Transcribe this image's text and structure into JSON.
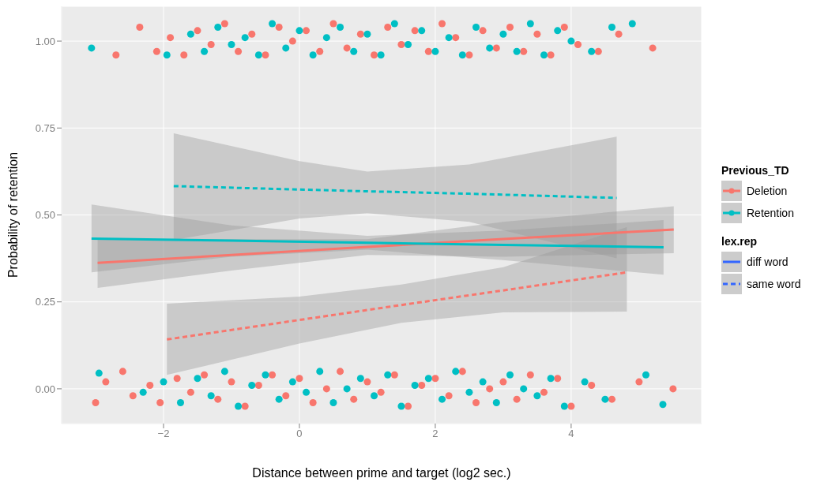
{
  "chart_data": {
    "type": "scatter",
    "xlabel": "Distance between prime and target (log2 sec.)",
    "ylabel": "Probability of retention",
    "xlim": [
      -3.5,
      5.92
    ],
    "xticks": [
      {
        "value": -2,
        "label": "−2"
      },
      0,
      2,
      4
    ],
    "ylim": [
      -0.1,
      1.1
    ],
    "yticks": [
      {
        "value": 0,
        "label": "0.00"
      },
      {
        "value": 0.25,
        "label": "0.25"
      },
      {
        "value": 0.5,
        "label": "0.50"
      },
      {
        "value": 0.75,
        "label": "0.75"
      },
      {
        "value": 1,
        "label": "1.00"
      }
    ],
    "grid": true,
    "legend": "right",
    "legend_title": "Previous_TD",
    "annotations": [
      "lex.rep",
      "diff word",
      "same word"
    ],
    "series": [
      {
        "marker": "circle",
        "name": "Deletion",
        "color": "#f8766d",
        "x": [
          -3.0,
          -2.85,
          -2.6,
          -2.45,
          -2.2,
          -2.05,
          -1.8,
          -1.6,
          -1.4,
          -1.2,
          -1.0,
          -0.8,
          -0.6,
          -0.4,
          -0.2,
          0.0,
          0.2,
          0.4,
          0.6,
          0.8,
          1.0,
          1.2,
          1.4,
          1.6,
          1.8,
          2.0,
          2.2,
          2.4,
          2.6,
          2.8,
          3.0,
          3.2,
          3.4,
          3.6,
          3.8,
          4.0,
          4.3,
          4.6,
          5.0,
          5.5,
          -2.7,
          -2.35,
          -2.1,
          -1.9,
          -1.7,
          -1.5,
          -1.3,
          -1.1,
          -0.9,
          -0.7,
          -0.5,
          -0.3,
          -0.1,
          0.1,
          0.3,
          0.5,
          0.7,
          0.9,
          1.1,
          1.3,
          1.5,
          1.7,
          1.9,
          2.1,
          2.3,
          2.5,
          2.7,
          2.9,
          3.1,
          3.3,
          3.5,
          3.7,
          3.9,
          4.1,
          4.4,
          4.7,
          5.2
        ],
        "values": [
          -0.04,
          0.02,
          0.05,
          -0.02,
          0.01,
          -0.04,
          0.03,
          -0.01,
          0.04,
          -0.03,
          0.02,
          -0.05,
          0.01,
          0.04,
          -0.02,
          0.03,
          -0.04,
          0.0,
          0.05,
          -0.03,
          0.02,
          -0.01,
          0.04,
          -0.05,
          0.01,
          0.03,
          -0.02,
          0.05,
          -0.04,
          0.0,
          0.02,
          -0.03,
          0.04,
          -0.01,
          0.03,
          -0.05,
          0.01,
          -0.03,
          0.02,
          0.0,
          0.96,
          1.04,
          0.97,
          1.01,
          0.96,
          1.03,
          0.99,
          1.05,
          0.97,
          1.02,
          0.96,
          1.04,
          1.0,
          1.03,
          0.97,
          1.05,
          0.98,
          1.02,
          0.96,
          1.04,
          0.99,
          1.03,
          0.97,
          1.05,
          1.01,
          0.96,
          1.03,
          0.98,
          1.04,
          0.97,
          1.02,
          0.96,
          1.04,
          0.99,
          0.97,
          1.02,
          0.98
        ]
      },
      {
        "marker": "circle",
        "name": "Retention",
        "color": "#00bfc4",
        "x": [
          -2.95,
          -2.3,
          -2.0,
          -1.75,
          -1.5,
          -1.3,
          -1.1,
          -0.9,
          -0.7,
          -0.5,
          -0.3,
          -0.1,
          0.1,
          0.3,
          0.5,
          0.7,
          0.9,
          1.1,
          1.3,
          1.5,
          1.7,
          1.9,
          2.1,
          2.3,
          2.5,
          2.7,
          2.9,
          3.1,
          3.3,
          3.5,
          3.7,
          3.9,
          4.2,
          4.5,
          5.1,
          5.35,
          -3.06,
          -1.95,
          -1.6,
          -1.4,
          -1.2,
          -1.0,
          -0.8,
          -0.6,
          -0.4,
          -0.2,
          0.0,
          0.2,
          0.4,
          0.6,
          0.8,
          1.0,
          1.2,
          1.4,
          1.6,
          1.8,
          2.0,
          2.2,
          2.4,
          2.6,
          2.8,
          3.0,
          3.2,
          3.4,
          3.6,
          3.8,
          4.0,
          4.3,
          4.6,
          4.9
        ],
        "values": [
          0.045,
          -0.01,
          0.02,
          -0.04,
          0.03,
          -0.02,
          0.05,
          -0.05,
          0.01,
          0.04,
          -0.03,
          0.02,
          -0.01,
          0.05,
          -0.04,
          0.0,
          0.03,
          -0.02,
          0.04,
          -0.05,
          0.01,
          0.03,
          -0.03,
          0.05,
          -0.01,
          0.02,
          -0.04,
          0.04,
          0.0,
          -0.02,
          0.03,
          -0.05,
          0.02,
          -0.03,
          0.04,
          -0.045,
          0.98,
          0.96,
          1.02,
          0.97,
          1.04,
          0.99,
          1.01,
          0.96,
          1.05,
          0.98,
          1.03,
          0.96,
          1.01,
          1.04,
          0.97,
          1.02,
          0.96,
          1.05,
          0.99,
          1.03,
          0.97,
          1.01,
          0.96,
          1.04,
          0.98,
          1.02,
          0.97,
          1.05,
          0.96,
          1.03,
          1.0,
          0.97,
          1.04,
          1.05
        ]
      },
      {
        "type": "line",
        "color": "#f8766d",
        "line_style": "solid",
        "marker": "none",
        "x": [
          -2.97,
          -1,
          1,
          3,
          5.51
        ],
        "values": [
          0.362,
          0.385,
          0.408,
          0.431,
          0.458
        ],
        "lower": [
          0.29,
          0.34,
          0.385,
          0.38,
          0.39
        ],
        "upper": [
          0.43,
          0.43,
          0.43,
          0.48,
          0.525
        ]
      },
      {
        "type": "line",
        "color": "#00bfc4",
        "line_style": "solid",
        "marker": "none",
        "x": [
          -3.06,
          -1,
          1,
          3,
          5.36
        ],
        "values": [
          0.432,
          0.426,
          0.42,
          0.414,
          0.407
        ],
        "lower": [
          0.335,
          0.38,
          0.4,
          0.37,
          0.328
        ],
        "upper": [
          0.53,
          0.47,
          0.44,
          0.455,
          0.485
        ]
      },
      {
        "type": "line",
        "color": "#00bfc4",
        "line_style": "dashed",
        "marker": "none",
        "x": [
          -1.85,
          0,
          1,
          2.5,
          4.67
        ],
        "values": [
          0.583,
          0.573,
          0.568,
          0.561,
          0.549
        ],
        "lower": [
          0.428,
          0.49,
          0.505,
          0.48,
          0.375
        ],
        "upper": [
          0.735,
          0.655,
          0.625,
          0.645,
          0.725
        ]
      },
      {
        "type": "line",
        "color": "#f8766d",
        "line_style": "dashed",
        "marker": "none",
        "x": [
          -1.95,
          0,
          1.5,
          3,
          4.82
        ],
        "values": [
          0.142,
          0.198,
          0.241,
          0.283,
          0.335
        ],
        "lower": [
          0.04,
          0.13,
          0.19,
          0.22,
          0.222
        ],
        "upper": [
          0.245,
          0.265,
          0.3,
          0.35,
          0.465
        ]
      }
    ]
  }
}
